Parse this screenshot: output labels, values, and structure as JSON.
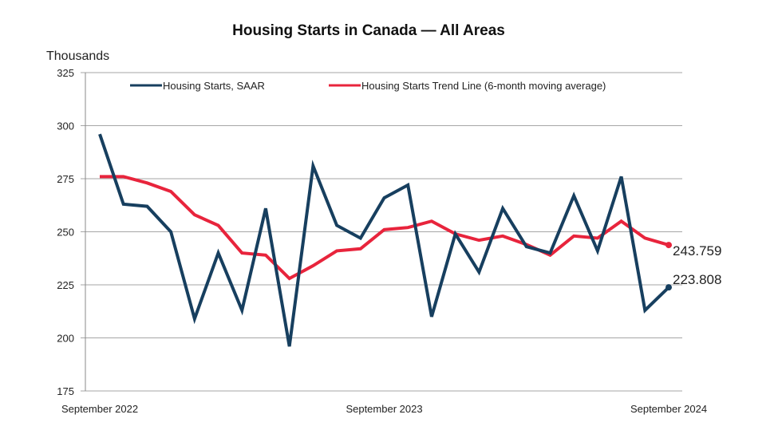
{
  "chart_data": {
    "type": "line",
    "title": "Housing Starts in Canada — All Areas",
    "ylabel": "Thousands",
    "xlabel": "",
    "ylim": [
      175,
      325
    ],
    "yticks": [
      175,
      200,
      225,
      250,
      275,
      300,
      325
    ],
    "grid": true,
    "legend_position": "top",
    "x": [
      "Sep 2022",
      "Oct 2022",
      "Nov 2022",
      "Dec 2022",
      "Jan 2023",
      "Feb 2023",
      "Mar 2023",
      "Apr 2023",
      "May 2023",
      "Jun 2023",
      "Jul 2023",
      "Aug 2023",
      "Sep 2023",
      "Oct 2023",
      "Nov 2023",
      "Dec 2023",
      "Jan 2024",
      "Feb 2024",
      "Mar 2024",
      "Apr 2024",
      "May 2024",
      "Jun 2024",
      "Jul 2024",
      "Aug 2024",
      "Sep 2024"
    ],
    "xtick_labels": [
      {
        "index": 0,
        "label": "September 2022"
      },
      {
        "index": 12,
        "label": "September 2023"
      },
      {
        "index": 24,
        "label": "September 2024"
      }
    ],
    "series": [
      {
        "name": "Housing Starts, SAAR",
        "color": "#173f5f",
        "values": [
          296,
          263,
          262,
          250,
          209,
          240,
          213,
          261,
          196,
          281,
          253,
          247,
          266,
          272,
          210,
          249,
          231,
          261,
          243,
          240,
          267,
          241,
          276,
          213,
          223.808
        ],
        "end_label": "223.808"
      },
      {
        "name": "Housing Starts Trend Line (6-month moving average)",
        "color": "#e8243c",
        "values": [
          276,
          276,
          273,
          269,
          258,
          253,
          240,
          239,
          228,
          234,
          241,
          242,
          251,
          252,
          255,
          249,
          246,
          248,
          244,
          239,
          248,
          247,
          255,
          247,
          243.759
        ],
        "end_label": "243.759"
      }
    ]
  }
}
